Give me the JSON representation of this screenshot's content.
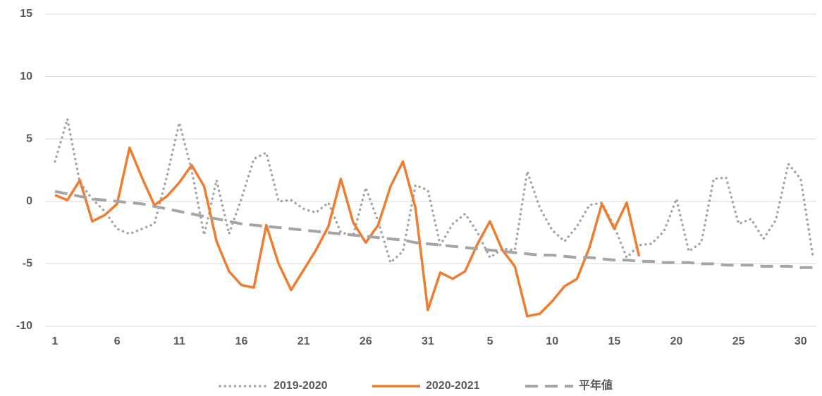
{
  "chart_data": {
    "type": "line",
    "categories": [
      "1",
      null,
      null,
      null,
      null,
      "6",
      null,
      null,
      null,
      null,
      "11",
      null,
      null,
      null,
      null,
      "16",
      null,
      null,
      null,
      null,
      "21",
      null,
      null,
      null,
      null,
      "26",
      null,
      null,
      null,
      null,
      "31",
      null,
      null,
      null,
      null,
      "5",
      null,
      null,
      null,
      null,
      "10",
      null,
      null,
      null,
      null,
      "15",
      null,
      null,
      null,
      null,
      "20",
      null,
      null,
      null,
      null,
      "25",
      null,
      null,
      null,
      null,
      "30",
      null
    ],
    "series": [
      {
        "name": "2019-2020",
        "color": "#a5a5a5",
        "values": [
          3.2,
          6.6,
          1.5,
          0.2,
          -0.8,
          -2.2,
          -2.6,
          -2.2,
          -1.8,
          2.0,
          6.3,
          2.5,
          -2.7,
          1.7,
          -2.6,
          0.2,
          3.4,
          3.9,
          0.0,
          0.1,
          -0.6,
          -0.9,
          -0.1,
          -2.5,
          -2.7,
          1.1,
          -1.6,
          -4.9,
          -4.0,
          1.3,
          0.9,
          -3.5,
          -1.8,
          -1.0,
          -2.5,
          -4.5,
          -3.8,
          -3.9,
          2.4,
          -0.5,
          -2.3,
          -3.2,
          -2.0,
          -0.3,
          -0.1,
          -2.0,
          -4.5,
          -3.5,
          -3.4,
          -2.4,
          0.2,
          -4.0,
          -3.3,
          1.8,
          1.9,
          -1.8,
          -1.4,
          -3.0,
          -1.5,
          3.0,
          1.8,
          -4.5
        ]
      },
      {
        "name": "2020-2021",
        "color": "#ed7d31",
        "values": [
          0.5,
          0.1,
          1.7,
          -1.6,
          -1.1,
          -0.2,
          4.3,
          1.9,
          -0.3,
          0.4,
          1.5,
          2.9,
          1.2,
          -3.2,
          -5.6,
          -6.7,
          -6.9,
          -1.9,
          -5.0,
          -7.1,
          -5.5,
          -3.9,
          -2.0,
          1.8,
          -1.7,
          -3.3,
          -1.9,
          1.2,
          3.2,
          -0.5,
          -8.7,
          -5.7,
          -6.2,
          -5.6,
          -3.4,
          -1.6,
          -3.9,
          -5.2,
          -9.2,
          -9.0,
          -8.0,
          -6.8,
          -6.2,
          -3.7,
          -0.2,
          -2.2,
          -0.1,
          -4.4,
          null,
          null,
          null,
          null,
          null,
          null,
          null,
          null,
          null,
          null,
          null,
          null,
          null,
          null
        ]
      },
      {
        "name": "平年値",
        "color": "#a5a5a5",
        "values": [
          0.8,
          0.6,
          0.4,
          0.2,
          0.1,
          0,
          -0.1,
          -0.2,
          -0.4,
          -0.6,
          -0.8,
          -1.0,
          -1.2,
          -1.4,
          -1.6,
          -1.8,
          -1.9,
          -2.0,
          -2.1,
          -2.2,
          -2.3,
          -2.4,
          -2.5,
          -2.6,
          -2.7,
          -2.8,
          -2.9,
          -3.0,
          -3.1,
          -3.3,
          -3.4,
          -3.5,
          -3.6,
          -3.7,
          -3.8,
          -3.9,
          -4.0,
          -4.1,
          -4.2,
          -4.3,
          -4.3,
          -4.4,
          -4.5,
          -4.5,
          -4.6,
          -4.7,
          -4.7,
          -4.8,
          -4.8,
          -4.9,
          -4.9,
          -4.9,
          -5.0,
          -5.0,
          -5.1,
          -5.1,
          -5.1,
          -5.2,
          -5.2,
          -5.2,
          -5.3,
          -5.3
        ]
      }
    ],
    "ylim": [
      -10,
      15
    ],
    "yticks": [
      15,
      10,
      5,
      0,
      -5,
      -10
    ],
    "grid": true,
    "legend": "bottom"
  }
}
